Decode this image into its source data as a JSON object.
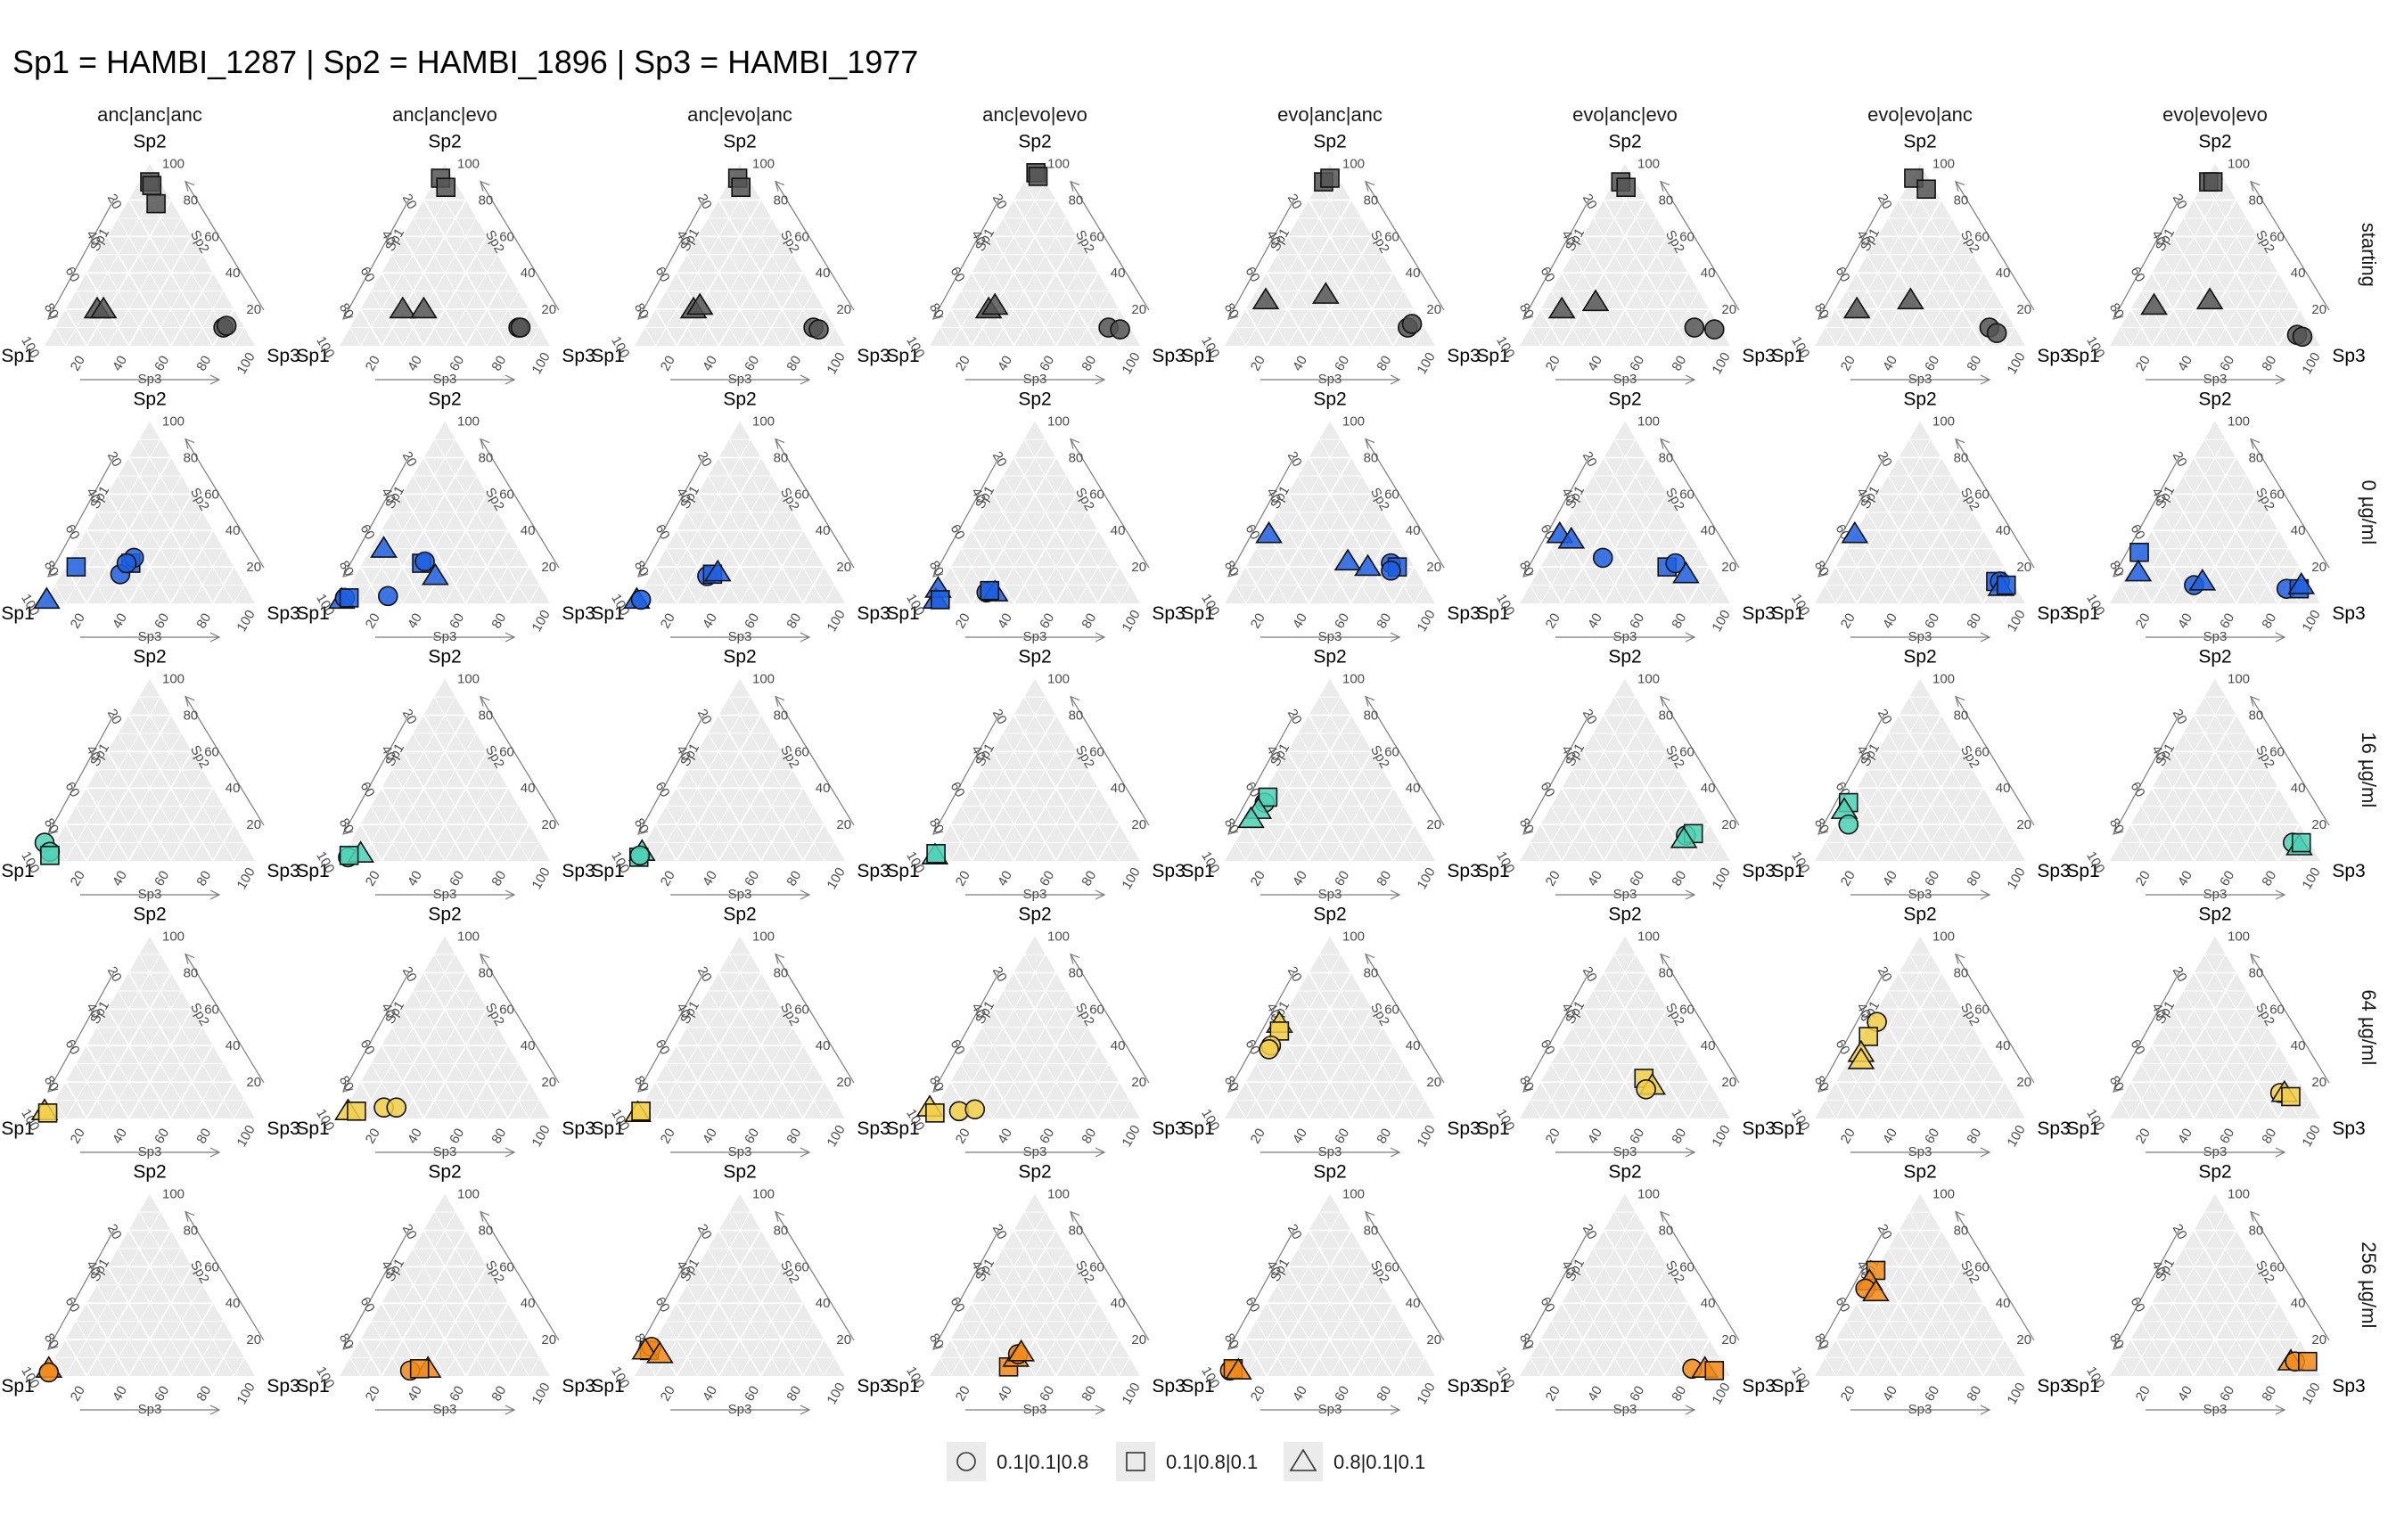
{
  "chart_data": {
    "type": "scatter",
    "subtype": "ternary-facet-grid",
    "title": "Sp1 = HAMBI_1287 | Sp2 = HAMBI_1896 | Sp3 = HAMBI_1977",
    "vertex_labels": {
      "top": "Sp2",
      "left": "Sp1",
      "right": "Sp3"
    },
    "axis_names": {
      "left": "Sp1",
      "right": "Sp2",
      "bottom": "Sp3"
    },
    "tick_labels": [
      "20",
      "40",
      "60",
      "80",
      "100"
    ],
    "grid": true,
    "columns": [
      "anc|anc|anc",
      "anc|anc|evo",
      "anc|evo|anc",
      "anc|evo|evo",
      "evo|anc|anc",
      "evo|anc|evo",
      "evo|evo|anc",
      "evo|evo|evo"
    ],
    "rows": [
      {
        "label": "starting",
        "color": "#555555"
      },
      {
        "label": "0 µg/ml",
        "color": "#1f5fe0"
      },
      {
        "label": "16 µg/ml",
        "color": "#4fd1b5"
      },
      {
        "label": "64 µg/ml",
        "color": "#f2cf4a"
      },
      {
        "label": "256 µg/ml",
        "color": "#f28a1a"
      }
    ],
    "legend": {
      "position": "bottom",
      "items": [
        {
          "shape": "circle",
          "label": "0.1|0.1|0.8"
        },
        {
          "shape": "square",
          "label": "0.1|0.8|0.1"
        },
        {
          "shape": "triangle",
          "label": "0.8|0.1|0.1"
        }
      ]
    },
    "point_encoding": "[Sp1, Sp2, Sp3, shape] with compositions in percent",
    "points": [
      [
        [
          [
            5,
            90,
            5,
            "s"
          ],
          [
            5,
            88,
            7,
            "s"
          ],
          [
            8,
            78,
            14,
            "s"
          ],
          [
            65,
            20,
            15,
            "t"
          ],
          [
            62,
            20,
            18,
            "t"
          ],
          [
            10,
            10,
            80,
            "c"
          ],
          [
            8,
            11,
            81,
            "c"
          ]
        ],
        [
          [
            6,
            92,
            2,
            "s"
          ],
          [
            6,
            87,
            7,
            "s"
          ],
          [
            60,
            20,
            20,
            "t"
          ],
          [
            50,
            20,
            30,
            "t"
          ],
          [
            10,
            10,
            80,
            "c"
          ],
          [
            9,
            10,
            81,
            "c"
          ]
        ],
        [
          [
            5,
            92,
            3,
            "s"
          ],
          [
            6,
            87,
            7,
            "s"
          ],
          [
            62,
            20,
            18,
            "t"
          ],
          [
            58,
            22,
            20,
            "t"
          ],
          [
            10,
            10,
            80,
            "c"
          ],
          [
            8,
            9,
            83,
            "c"
          ]
        ],
        [
          [
            2,
            95,
            3,
            "s"
          ],
          [
            2,
            93,
            5,
            "s"
          ],
          [
            62,
            20,
            18,
            "t"
          ],
          [
            58,
            22,
            20,
            "t"
          ],
          [
            10,
            10,
            80,
            "c"
          ],
          [
            5,
            9,
            86,
            "c"
          ]
        ],
        [
          [
            8,
            90,
            2,
            "s"
          ],
          [
            4,
            92,
            4,
            "s"
          ],
          [
            68,
            25,
            7,
            "t"
          ],
          [
            38,
            28,
            34,
            "t"
          ],
          [
            8,
            10,
            82,
            "c"
          ],
          [
            5,
            12,
            83,
            "c"
          ]
        ],
        [
          [
            7,
            90,
            3,
            "s"
          ],
          [
            6,
            87,
            7,
            "s"
          ],
          [
            70,
            20,
            10,
            "t"
          ],
          [
            52,
            24,
            24,
            "t"
          ],
          [
            12,
            10,
            78,
            "c"
          ],
          [
            3,
            9,
            88,
            "c"
          ]
        ],
        [
          [
            7,
            92,
            1,
            "s"
          ],
          [
            4,
            86,
            10,
            "s"
          ],
          [
            70,
            20,
            10,
            "t"
          ],
          [
            42,
            25,
            33,
            "t"
          ],
          [
            12,
            10,
            78,
            "c"
          ],
          [
            10,
            7,
            83,
            "c"
          ]
        ],
        [
          [
            8,
            90,
            2,
            "s"
          ],
          [
            6,
            90,
            4,
            "s"
          ],
          [
            68,
            22,
            10,
            "t"
          ],
          [
            40,
            25,
            35,
            "t"
          ],
          [
            8,
            6,
            86,
            "c"
          ],
          [
            6,
            5,
            89,
            "c"
          ]
        ]
      ],
      [
        [
          [
            98,
            2,
            0,
            "t"
          ],
          [
            75,
            20,
            5,
            "s"
          ],
          [
            48,
            22,
            30,
            "s"
          ],
          [
            45,
            25,
            30,
            "c"
          ],
          [
            56,
            16,
            28,
            "c"
          ],
          [
            50,
            22,
            28,
            "c"
          ]
        ],
        [
          [
            98,
            2,
            0,
            "t"
          ],
          [
            96,
            3,
            1,
            "c"
          ],
          [
            94,
            3,
            3,
            "s"
          ],
          [
            64,
            30,
            6,
            "t"
          ],
          [
            50,
            22,
            28,
            "s"
          ],
          [
            48,
            23,
            29,
            "c"
          ],
          [
            47,
            15,
            38,
            "t"
          ],
          [
            75,
            4,
            21,
            "c"
          ]
        ],
        [
          [
            98,
            2,
            0,
            "t"
          ],
          [
            96,
            2,
            2,
            "c"
          ],
          [
            58,
            15,
            27,
            "c"
          ],
          [
            55,
            16,
            29,
            "s"
          ],
          [
            52,
            17,
            31,
            "t"
          ]
        ],
        [
          [
            96,
            2,
            2,
            "t"
          ],
          [
            92,
            8,
            0,
            "t"
          ],
          [
            94,
            2,
            4,
            "s"
          ],
          [
            70,
            6,
            24,
            "c"
          ],
          [
            66,
            6,
            28,
            "t"
          ],
          [
            68,
            7,
            25,
            "s"
          ]
        ],
        [
          [
            60,
            38,
            2,
            "t"
          ],
          [
            10,
            22,
            68,
            "c"
          ],
          [
            8,
            20,
            72,
            "s"
          ],
          [
            30,
            23,
            47,
            "t"
          ],
          [
            22,
            20,
            58,
            "t"
          ],
          [
            12,
            18,
            70,
            "c"
          ]
        ],
        [
          [
            62,
            38,
            0,
            "t"
          ],
          [
            58,
            35,
            7,
            "t"
          ],
          [
            48,
            25,
            27,
            "c"
          ],
          [
            20,
            20,
            60,
            "s"
          ],
          [
            15,
            22,
            63,
            "c"
          ],
          [
            13,
            16,
            71,
            "t"
          ]
        ],
        [
          [
            62,
            38,
            0,
            "t"
          ],
          [
            8,
            12,
            80,
            "s"
          ],
          [
            6,
            12,
            82,
            "c"
          ],
          [
            7,
            9,
            84,
            "t"
          ],
          [
            4,
            10,
            86,
            "s"
          ]
        ],
        [
          [
            72,
            28,
            0,
            "s"
          ],
          [
            78,
            17,
            5,
            "t"
          ],
          [
            55,
            10,
            35,
            "c"
          ],
          [
            50,
            12,
            38,
            "t"
          ],
          [
            12,
            8,
            80,
            "c"
          ],
          [
            6,
            8,
            86,
            "s"
          ],
          [
            4,
            10,
            86,
            "t"
          ]
        ]
      ],
      [
        [
          [
            95,
            10,
            -5,
            "c"
          ],
          [
            95,
            5,
            0,
            "c"
          ],
          [
            96,
            3,
            1,
            "s"
          ]
        ],
        [
          [
            95,
            2,
            3,
            "c"
          ],
          [
            88,
            4,
            8,
            "t"
          ],
          [
            94,
            3,
            3,
            "s"
          ]
        ],
        [
          [
            94,
            5,
            1,
            "t"
          ],
          [
            97,
            2,
            1,
            "s"
          ],
          [
            96,
            3,
            1,
            "c"
          ]
        ],
        [
          [
            96,
            3,
            1,
            "t"
          ],
          [
            95,
            4,
            1,
            "s"
          ]
        ],
        [
          [
            65,
            32,
            3,
            "c"
          ],
          [
            62,
            35,
            3,
            "s"
          ],
          [
            70,
            28,
            2,
            "t"
          ],
          [
            76,
            23,
            1,
            "t"
          ]
        ],
        [
          [
            14,
            14,
            72,
            "c"
          ],
          [
            10,
            15,
            75,
            "s"
          ],
          [
            16,
            12,
            72,
            "t"
          ]
        ],
        [
          [
            68,
            32,
            0,
            "s"
          ],
          [
            72,
            28,
            0,
            "t"
          ],
          [
            74,
            20,
            6,
            "c"
          ]
        ],
        [
          [
            8,
            10,
            82,
            "c"
          ],
          [
            6,
            8,
            86,
            "t"
          ],
          [
            4,
            10,
            86,
            "s"
          ]
        ]
      ],
      [
        [
          [
            98,
            4,
            -2,
            "t"
          ],
          [
            97,
            3,
            0,
            "s"
          ]
        ],
        [
          [
            94,
            4,
            2,
            "t"
          ],
          [
            90,
            4,
            6,
            "s"
          ],
          [
            76,
            6,
            18,
            "c"
          ],
          [
            70,
            6,
            24,
            "c"
          ]
        ],
        [
          [
            97,
            3,
            0,
            "t"
          ],
          [
            95,
            4,
            1,
            "s"
          ]
        ],
        [
          [
            97,
            6,
            -3,
            "t"
          ],
          [
            96,
            3,
            1,
            "s"
          ],
          [
            84,
            4,
            12,
            "c"
          ],
          [
            76,
            5,
            19,
            "c"
          ]
        ],
        [
          [
            48,
            52,
            0,
            "t"
          ],
          [
            50,
            48,
            2,
            "s"
          ],
          [
            58,
            40,
            2,
            "c"
          ],
          [
            60,
            38,
            2,
            "c"
          ]
        ],
        [
          [
            30,
            22,
            48,
            "s"
          ],
          [
            28,
            18,
            54,
            "t"
          ],
          [
            32,
            16,
            52,
            "c"
          ]
        ],
        [
          [
            44,
            53,
            3,
            "c"
          ],
          [
            52,
            45,
            3,
            "s"
          ],
          [
            60,
            36,
            4,
            "t"
          ],
          [
            62,
            32,
            6,
            "t"
          ]
        ],
        [
          [
            12,
            14,
            74,
            "c"
          ],
          [
            10,
            14,
            76,
            "t"
          ],
          [
            8,
            12,
            80,
            "s"
          ]
        ]
      ],
      [
        [
          [
            96,
            4,
            0,
            "t"
          ],
          [
            97,
            2,
            1,
            "c"
          ]
        ],
        [
          [
            56,
            4,
            40,
            "t"
          ],
          [
            65,
            3,
            32,
            "c"
          ],
          [
            60,
            4,
            36,
            "s"
          ]
        ],
        [
          [
            86,
            14,
            0,
            "s"
          ],
          [
            84,
            16,
            0,
            "c"
          ],
          [
            88,
            14,
            -2,
            "t"
          ],
          [
            82,
            12,
            6,
            "t"
          ]
        ],
        [
          [
            60,
            5,
            35,
            "s"
          ],
          [
            54,
            10,
            36,
            "t"
          ],
          [
            52,
            12,
            36,
            "c"
          ],
          [
            50,
            13,
            37,
            "t"
          ]
        ],
        [
          [
            96,
            3,
            1,
            "c"
          ],
          [
            94,
            4,
            2,
            "s"
          ],
          [
            92,
            3,
            5,
            "t"
          ]
        ],
        [
          [
            16,
            4,
            80,
            "c"
          ],
          [
            10,
            4,
            86,
            "t"
          ],
          [
            6,
            3,
            91,
            "s"
          ]
        ],
        [
          [
            42,
            58,
            0,
            "s"
          ],
          [
            48,
            52,
            0,
            "t"
          ],
          [
            52,
            48,
            0,
            "c"
          ],
          [
            48,
            46,
            6,
            "t"
          ]
        ],
        [
          [
            10,
            8,
            82,
            "t"
          ],
          [
            8,
            8,
            84,
            "c"
          ],
          [
            2,
            8,
            90,
            "s"
          ]
        ]
      ]
    ]
  }
}
